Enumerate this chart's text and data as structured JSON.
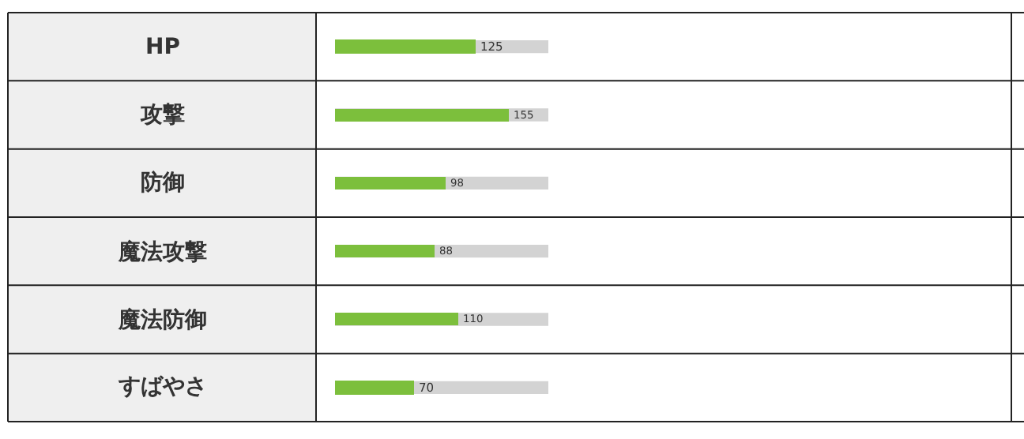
{
  "chart_data": {
    "type": "bar",
    "orientation": "horizontal",
    "categories": [
      "HP",
      "攻撃",
      "防御",
      "魔法攻撃",
      "魔法防御",
      "すばやさ"
    ],
    "values": [
      125,
      155,
      98,
      88,
      110,
      70
    ],
    "color": "#7cbf3c",
    "xlim": [
      0,
      190
    ],
    "tick_labels": false,
    "data_labels": true,
    "grid": false,
    "legend": false
  }
}
